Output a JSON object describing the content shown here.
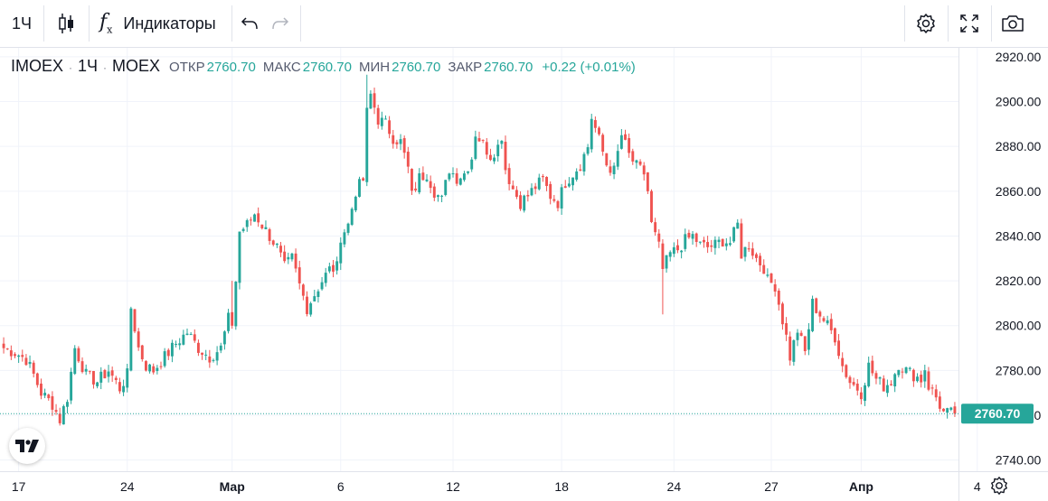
{
  "toolbar": {
    "interval": "1Ч",
    "indicators_label": "Индикаторы",
    "icons": [
      "candles-icon",
      "fx-icon",
      "undo-icon",
      "redo-icon",
      "settings-icon",
      "fullscreen-icon",
      "camera-icon"
    ]
  },
  "legend": {
    "symbol": "IMOEX",
    "sep1": "·",
    "interval": "1Ч",
    "sep2": "·",
    "exchange": "MOEX",
    "open_label": "ОТКР",
    "open": "2760.70",
    "high_label": "МАКС",
    "high": "2760.70",
    "low_label": "МИН",
    "low": "2760.70",
    "close_label": "ЗАКР",
    "close": "2760.70",
    "change": "+0.22 (+0.01%)"
  },
  "colors": {
    "up": "#26a69a",
    "down": "#ef5350",
    "grid": "#f0f3fa",
    "text": "#131722",
    "price_badge": "#26a69a"
  },
  "chart_data": {
    "type": "candlestick",
    "title": "IMOEX · 1Ч · MOEX",
    "y_range": [
      2735,
      2924
    ],
    "y_ticks": [
      "2920.00",
      "2900.00",
      "2880.00",
      "2860.00",
      "2840.00",
      "2820.00",
      "2800.00",
      "2780.00",
      "2760.00",
      "2740.00"
    ],
    "y_tick_values": [
      2920,
      2900,
      2880,
      2860,
      2840,
      2820,
      2800,
      2780,
      2760,
      2740
    ],
    "x_labels": [
      "17",
      "24",
      "Мар",
      "6",
      "12",
      "18",
      "24",
      "27",
      "Апр",
      "4"
    ],
    "x_label_index": [
      4,
      33,
      61,
      90,
      120,
      149,
      179,
      205,
      229,
      260
    ],
    "last_price_label": "2760.70",
    "last_price": 2760.7,
    "close_path": [
      [
        0,
        2790
      ],
      [
        3,
        2788
      ],
      [
        6,
        2785
      ],
      [
        8,
        2778
      ],
      [
        10,
        2770
      ],
      [
        13,
        2765
      ],
      [
        15,
        2758
      ],
      [
        17,
        2768
      ],
      [
        19,
        2790
      ],
      [
        22,
        2778
      ],
      [
        25,
        2775
      ],
      [
        28,
        2780
      ],
      [
        31,
        2772
      ],
      [
        33,
        2778
      ],
      [
        34,
        2808
      ],
      [
        36,
        2790
      ],
      [
        38,
        2782
      ],
      [
        40,
        2780
      ],
      [
        43,
        2786
      ],
      [
        46,
        2792
      ],
      [
        49,
        2797
      ],
      [
        52,
        2790
      ],
      [
        55,
        2786
      ],
      [
        58,
        2790
      ],
      [
        60,
        2803
      ],
      [
        61,
        2801
      ],
      [
        62,
        2820
      ],
      [
        63,
        2842
      ],
      [
        65,
        2845
      ],
      [
        67,
        2850
      ],
      [
        69,
        2845
      ],
      [
        71,
        2840
      ],
      [
        73,
        2835
      ],
      [
        75,
        2826
      ],
      [
        77,
        2830
      ],
      [
        79,
        2818
      ],
      [
        81,
        2808
      ],
      [
        83,
        2814
      ],
      [
        85,
        2820
      ],
      [
        87,
        2825
      ],
      [
        89,
        2826
      ],
      [
        90,
        2840
      ],
      [
        92,
        2845
      ],
      [
        94,
        2860
      ],
      [
        96,
        2865
      ],
      [
        97,
        2895
      ],
      [
        98,
        2903
      ],
      [
        100,
        2892
      ],
      [
        102,
        2890
      ],
      [
        104,
        2884
      ],
      [
        106,
        2882
      ],
      [
        108,
        2870
      ],
      [
        109,
        2858
      ],
      [
        111,
        2866
      ],
      [
        113,
        2868
      ],
      [
        115,
        2860
      ],
      [
        117,
        2856
      ],
      [
        119,
        2870
      ],
      [
        121,
        2866
      ],
      [
        123,
        2868
      ],
      [
        125,
        2875
      ],
      [
        126,
        2886
      ],
      [
        128,
        2881
      ],
      [
        130,
        2876
      ],
      [
        132,
        2880
      ],
      [
        133,
        2885
      ],
      [
        134,
        2870
      ],
      [
        136,
        2861
      ],
      [
        138,
        2855
      ],
      [
        140,
        2858
      ],
      [
        142,
        2862
      ],
      [
        144,
        2865
      ],
      [
        146,
        2858
      ],
      [
        148,
        2855
      ],
      [
        150,
        2864
      ],
      [
        152,
        2868
      ],
      [
        154,
        2872
      ],
      [
        156,
        2880
      ],
      [
        157,
        2893
      ],
      [
        159,
        2883
      ],
      [
        161,
        2872
      ],
      [
        163,
        2869
      ],
      [
        165,
        2885
      ],
      [
        167,
        2876
      ],
      [
        169,
        2871
      ],
      [
        171,
        2868
      ],
      [
        172,
        2860
      ],
      [
        173,
        2845
      ],
      [
        175,
        2835
      ],
      [
        176,
        2825
      ],
      [
        178,
        2832
      ],
      [
        180,
        2834
      ],
      [
        182,
        2838
      ],
      [
        184,
        2840
      ],
      [
        186,
        2836
      ],
      [
        188,
        2835
      ],
      [
        190,
        2836
      ],
      [
        192,
        2838
      ],
      [
        194,
        2837
      ],
      [
        196,
        2845
      ],
      [
        197,
        2832
      ],
      [
        199,
        2836
      ],
      [
        201,
        2830
      ],
      [
        203,
        2826
      ],
      [
        204,
        2820
      ],
      [
        206,
        2818
      ],
      [
        207,
        2810
      ],
      [
        209,
        2795
      ],
      [
        210,
        2786
      ],
      [
        212,
        2798
      ],
      [
        214,
        2788
      ],
      [
        216,
        2810
      ],
      [
        218,
        2805
      ],
      [
        220,
        2800
      ],
      [
        222,
        2795
      ],
      [
        224,
        2782
      ],
      [
        226,
        2775
      ],
      [
        228,
        2772
      ],
      [
        229,
        2770
      ],
      [
        231,
        2782
      ],
      [
        233,
        2776
      ],
      [
        235,
        2773
      ],
      [
        237,
        2775
      ],
      [
        239,
        2783
      ],
      [
        241,
        2780
      ],
      [
        243,
        2778
      ],
      [
        245,
        2776
      ],
      [
        246,
        2781
      ],
      [
        247,
        2773
      ],
      [
        249,
        2768
      ],
      [
        251,
        2761
      ],
      [
        253,
        2760.7
      ]
    ],
    "wick_extremes": [
      {
        "i": 97,
        "value": 2912
      },
      {
        "i": 176,
        "value": 2805
      },
      {
        "i": 61,
        "value": 2820
      }
    ],
    "candle_count": 255
  }
}
